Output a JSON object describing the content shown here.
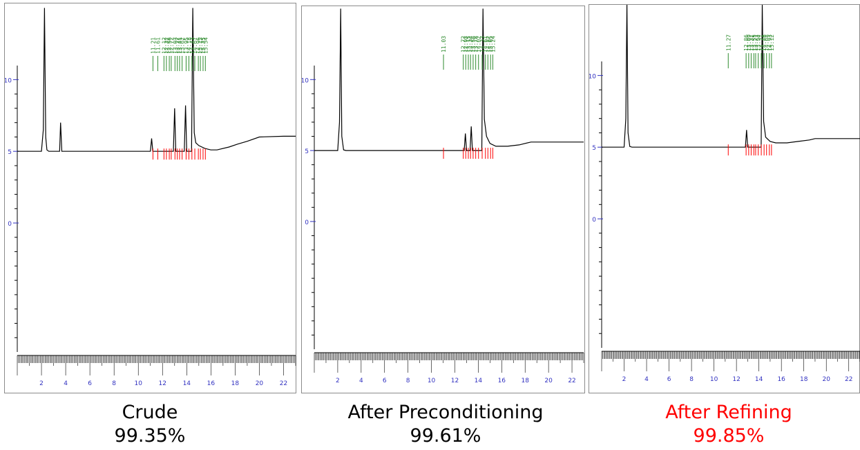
{
  "accent_color": "#ff0000",
  "trace_color": "#000000",
  "peak_marker_color": "#ff0000",
  "peak_label_color": "#2e8b2e",
  "axis_tick_color": "#3030c0",
  "chart_data": [
    {
      "type": "line",
      "title": "Crude",
      "purity": "99.35%",
      "xlim": [
        0,
        23
      ],
      "ylim": [
        -9,
        10.5
      ],
      "x_ticks": [
        "2",
        "4",
        "6",
        "8",
        "10",
        "12",
        "14",
        "16",
        "18",
        "20",
        "22"
      ],
      "y_ticks": [
        "10",
        "5",
        "0"
      ],
      "series": [
        {
          "points": [
            [
              0,
              5.0
            ],
            [
              2.0,
              5.0
            ],
            [
              2.15,
              6.5
            ],
            [
              2.25,
              15.0
            ],
            [
              2.35,
              6.0
            ],
            [
              2.45,
              5.1
            ],
            [
              2.6,
              5.0
            ],
            [
              3.5,
              5.0
            ],
            [
              3.58,
              7.0
            ],
            [
              3.68,
              5.0
            ],
            [
              11.0,
              5.0
            ],
            [
              11.1,
              5.9
            ],
            [
              11.2,
              5.0
            ],
            [
              12.9,
              5.0
            ],
            [
              13.0,
              8.0
            ],
            [
              13.1,
              5.0
            ],
            [
              13.8,
              5.0
            ],
            [
              13.9,
              8.2
            ],
            [
              14.0,
              5.0
            ],
            [
              14.4,
              5.0
            ],
            [
              14.5,
              15.0
            ],
            [
              14.62,
              6.3
            ],
            [
              14.75,
              5.6
            ],
            [
              15.0,
              5.4
            ],
            [
              15.5,
              5.2
            ],
            [
              16.0,
              5.1
            ],
            [
              16.5,
              5.1
            ],
            [
              17.5,
              5.3
            ],
            [
              18.2,
              5.5
            ],
            [
              19.0,
              5.7
            ],
            [
              20.0,
              6.0
            ],
            [
              22.0,
              6.05
            ],
            [
              23.0,
              6.05
            ]
          ]
        }
      ],
      "peak_times": [
        "11.21",
        "11.61",
        "12.12",
        "12.32",
        "12.56",
        "12.72",
        "13.03",
        "13.22",
        "13.41",
        "13.62",
        "13.95",
        "14.18",
        "14.43",
        "14.67",
        "14.96",
        "15.13",
        "15.35",
        "15.54"
      ]
    },
    {
      "type": "line",
      "title": "After Preconditioning",
      "purity": "99.61%",
      "xlim": [
        0,
        23
      ],
      "ylim": [
        -9,
        10.5
      ],
      "x_ticks": [
        "2",
        "4",
        "6",
        "8",
        "10",
        "12",
        "14",
        "16",
        "18",
        "20",
        "22"
      ],
      "y_ticks": [
        "10",
        "5",
        "0"
      ],
      "series": [
        {
          "points": [
            [
              0,
              5.0
            ],
            [
              2.0,
              5.0
            ],
            [
              2.15,
              7.0
            ],
            [
              2.25,
              15.0
            ],
            [
              2.35,
              6.0
            ],
            [
              2.5,
              5.05
            ],
            [
              2.7,
              5.0
            ],
            [
              12.8,
              5.0
            ],
            [
              12.9,
              6.2
            ],
            [
              13.0,
              5.0
            ],
            [
              13.3,
              5.0
            ],
            [
              13.4,
              6.7
            ],
            [
              13.5,
              5.0
            ],
            [
              14.3,
              5.0
            ],
            [
              14.4,
              15.0
            ],
            [
              14.52,
              7.2
            ],
            [
              14.7,
              6.0
            ],
            [
              15.0,
              5.5
            ],
            [
              15.5,
              5.3
            ],
            [
              16.5,
              5.3
            ],
            [
              17.5,
              5.4
            ],
            [
              18.5,
              5.6
            ],
            [
              19.0,
              5.6
            ],
            [
              20.0,
              5.6
            ],
            [
              22.0,
              5.6
            ],
            [
              23.0,
              5.6
            ]
          ]
        }
      ],
      "peak_times": [
        "11.03",
        "12.72",
        "12.93",
        "13.15",
        "13.34",
        "13.56",
        "13.78",
        "14.02",
        "14.33",
        "14.61",
        "14.82",
        "15.05",
        "15.24"
      ]
    },
    {
      "type": "line",
      "title": "After Refining",
      "purity": "99.85%",
      "xlim": [
        0,
        23
      ],
      "ylim": [
        -9,
        10.5
      ],
      "x_ticks": [
        "2",
        "4",
        "6",
        "8",
        "10",
        "12",
        "14",
        "16",
        "18",
        "20",
        "22"
      ],
      "y_ticks": [
        "10",
        "5",
        "0"
      ],
      "series": [
        {
          "points": [
            [
              0,
              5.0
            ],
            [
              2.0,
              5.0
            ],
            [
              2.15,
              7.0
            ],
            [
              2.25,
              15.0
            ],
            [
              2.35,
              6.0
            ],
            [
              2.5,
              5.05
            ],
            [
              2.7,
              5.0
            ],
            [
              12.8,
              5.0
            ],
            [
              12.9,
              6.2
            ],
            [
              13.0,
              5.0
            ],
            [
              14.2,
              5.0
            ],
            [
              14.3,
              15.0
            ],
            [
              14.42,
              6.8
            ],
            [
              14.6,
              5.7
            ],
            [
              15.0,
              5.4
            ],
            [
              15.5,
              5.3
            ],
            [
              16.5,
              5.3
            ],
            [
              17.5,
              5.4
            ],
            [
              18.5,
              5.5
            ],
            [
              19.0,
              5.6
            ],
            [
              20.0,
              5.6
            ],
            [
              22.0,
              5.6
            ],
            [
              23.0,
              5.6
            ]
          ]
        }
      ],
      "peak_times": [
        "11.27",
        "12.86",
        "13.09",
        "13.31",
        "13.55",
        "13.71",
        "13.94",
        "14.21",
        "14.46",
        "14.68",
        "14.93",
        "15.12"
      ]
    }
  ]
}
